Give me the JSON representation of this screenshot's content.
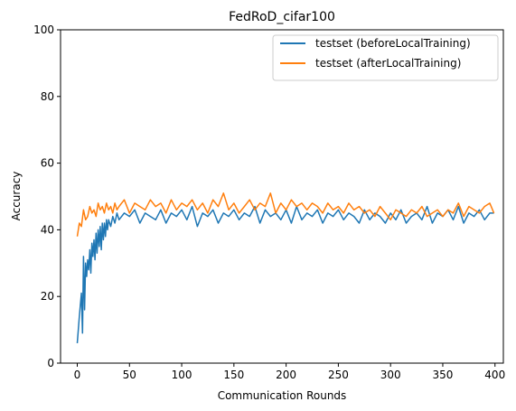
{
  "colors": {
    "before": "#1f77b4",
    "after": "#ff7f0e",
    "axis": "#000000",
    "background": "#ffffff"
  },
  "chart_data": {
    "type": "line",
    "title": "FedRoD_cifar100",
    "xlabel": "Communication Rounds",
    "ylabel": "Accuracy",
    "xlim": [
      -16,
      408
    ],
    "ylim": [
      0,
      100
    ],
    "xticks": [
      0,
      50,
      100,
      150,
      200,
      250,
      300,
      350,
      400
    ],
    "yticks": [
      0,
      20,
      40,
      60,
      80,
      100
    ],
    "grid": false,
    "legend_position": "top-right",
    "series": [
      {
        "name": "testset (beforeLocalTraining)",
        "color": "#1f77b4",
        "x": [
          0,
          2,
          4,
          5,
          6,
          7,
          8,
          9,
          10,
          11,
          12,
          13,
          14,
          15,
          16,
          17,
          18,
          19,
          20,
          21,
          22,
          23,
          24,
          25,
          26,
          27,
          28,
          29,
          30,
          32,
          34,
          36,
          38,
          40,
          45,
          50,
          55,
          60,
          65,
          70,
          75,
          80,
          85,
          90,
          95,
          100,
          105,
          110,
          115,
          120,
          125,
          130,
          135,
          140,
          145,
          150,
          155,
          160,
          165,
          170,
          175,
          180,
          185,
          190,
          195,
          200,
          205,
          210,
          215,
          220,
          225,
          230,
          235,
          240,
          245,
          250,
          255,
          260,
          265,
          270,
          275,
          280,
          285,
          290,
          295,
          300,
          305,
          310,
          315,
          320,
          325,
          330,
          335,
          340,
          345,
          350,
          355,
          360,
          365,
          370,
          375,
          380,
          385,
          390,
          395,
          399
        ],
        "y": [
          6,
          14,
          21,
          9,
          32,
          16,
          30,
          26,
          31,
          28,
          34,
          27,
          36,
          32,
          37,
          31,
          39,
          33,
          40,
          35,
          41,
          34,
          42,
          37,
          42,
          38,
          43,
          40,
          43,
          41,
          44,
          42,
          45,
          43,
          45,
          44,
          46,
          42,
          45,
          44,
          43,
          46,
          42,
          45,
          44,
          46,
          43,
          47,
          41,
          45,
          44,
          46,
          42,
          45,
          44,
          46,
          43,
          45,
          44,
          47,
          42,
          46,
          44,
          45,
          43,
          46,
          42,
          47,
          43,
          45,
          44,
          46,
          42,
          45,
          44,
          46,
          43,
          45,
          44,
          42,
          46,
          43,
          45,
          44,
          42,
          45,
          43,
          46,
          42,
          44,
          45,
          43,
          47,
          42,
          45,
          44,
          46,
          43,
          47,
          42,
          45,
          44,
          46,
          43,
          45,
          45
        ]
      },
      {
        "name": "testset (afterLocalTraining)",
        "color": "#ff7f0e",
        "x": [
          0,
          2,
          4,
          6,
          8,
          10,
          12,
          14,
          16,
          18,
          20,
          22,
          24,
          26,
          28,
          30,
          32,
          34,
          36,
          38,
          40,
          45,
          50,
          55,
          60,
          65,
          70,
          75,
          80,
          85,
          90,
          95,
          100,
          105,
          110,
          115,
          120,
          125,
          130,
          135,
          140,
          145,
          150,
          155,
          160,
          165,
          170,
          175,
          180,
          185,
          190,
          195,
          200,
          205,
          210,
          215,
          220,
          225,
          230,
          235,
          240,
          245,
          250,
          255,
          260,
          265,
          270,
          275,
          280,
          285,
          290,
          295,
          300,
          305,
          310,
          315,
          320,
          325,
          330,
          335,
          340,
          345,
          350,
          355,
          360,
          365,
          370,
          375,
          380,
          385,
          390,
          395,
          399
        ],
        "y": [
          38,
          42,
          41,
          46,
          43,
          44,
          47,
          45,
          46,
          44,
          48,
          46,
          47,
          45,
          48,
          46,
          47,
          45,
          48,
          46,
          47,
          49,
          45,
          48,
          47,
          46,
          49,
          47,
          48,
          45,
          49,
          46,
          48,
          47,
          49,
          46,
          48,
          45,
          49,
          47,
          51,
          46,
          48,
          45,
          47,
          49,
          46,
          48,
          47,
          51,
          45,
          48,
          46,
          49,
          47,
          48,
          46,
          48,
          47,
          45,
          48,
          46,
          47,
          45,
          48,
          46,
          47,
          45,
          46,
          44,
          47,
          45,
          43,
          46,
          45,
          44,
          46,
          45,
          47,
          44,
          45,
          46,
          44,
          46,
          45,
          48,
          44,
          47,
          46,
          45,
          47,
          48,
          45
        ]
      }
    ]
  }
}
